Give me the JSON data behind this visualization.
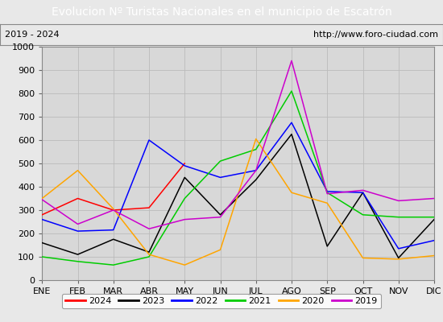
{
  "title": "Evolucion Nº Turistas Nacionales en el municipio de Escatrón",
  "subtitle_left": "2019 - 2024",
  "subtitle_right": "http://www.foro-ciudad.com",
  "x_labels": [
    "ENE",
    "FEB",
    "MAR",
    "ABR",
    "MAY",
    "JUN",
    "JUL",
    "AGO",
    "SEP",
    "OCT",
    "NOV",
    "DIC"
  ],
  "ylim": [
    0,
    1000
  ],
  "yticks": [
    0,
    100,
    200,
    300,
    400,
    500,
    600,
    700,
    800,
    900,
    1000
  ],
  "series": {
    "2024": {
      "color": "#ff0000",
      "data": [
        280,
        350,
        300,
        310,
        500,
        null,
        null,
        null,
        null,
        null,
        null,
        null
      ]
    },
    "2023": {
      "color": "#000000",
      "data": [
        160,
        110,
        175,
        120,
        440,
        280,
        430,
        625,
        145,
        375,
        95,
        260
      ]
    },
    "2022": {
      "color": "#0000ff",
      "data": [
        260,
        210,
        215,
        600,
        490,
        440,
        470,
        675,
        380,
        375,
        135,
        170
      ]
    },
    "2021": {
      "color": "#00cc00",
      "data": [
        100,
        80,
        65,
        100,
        350,
        510,
        560,
        810,
        375,
        280,
        270,
        270
      ]
    },
    "2020": {
      "color": "#ffa500",
      "data": [
        350,
        470,
        305,
        110,
        65,
        130,
        605,
        375,
        330,
        95,
        90,
        105
      ]
    },
    "2019": {
      "color": "#cc00cc",
      "data": [
        345,
        240,
        300,
        220,
        260,
        270,
        470,
        940,
        370,
        385,
        340,
        350
      ]
    }
  },
  "title_bg_color": "#4472c4",
  "title_font_color": "#ffffff",
  "title_fontsize": 10,
  "subtitle_fontsize": 8,
  "tick_fontsize": 8,
  "legend_fontsize": 8,
  "border_color": "#888888",
  "bg_color": "#e8e8e8",
  "plot_bg_color": "#d8d8d8",
  "grid_color": "#bbbbbb",
  "legend_order": [
    "2024",
    "2023",
    "2022",
    "2021",
    "2020",
    "2019"
  ]
}
